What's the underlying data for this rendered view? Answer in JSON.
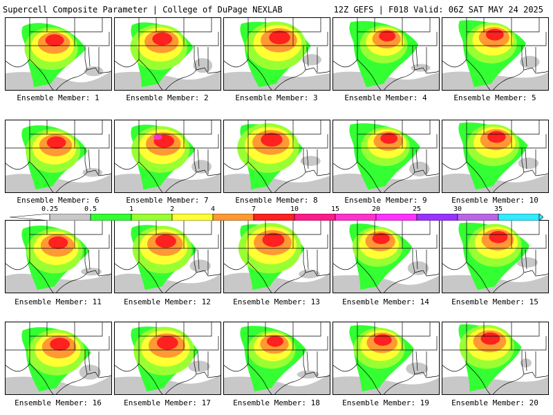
{
  "header": {
    "title": "Supercell Composite Parameter | College of DuPage NEXLAB",
    "run_info": "12Z GEFS | F018 Valid: 06Z SAT MAY 24 2025"
  },
  "colorbar": {
    "ticks": [
      "0.25",
      "0.5",
      "1",
      "2",
      "4",
      "7",
      "10",
      "15",
      "20",
      "25",
      "30",
      "35"
    ],
    "colors": [
      "#c8c8c8",
      "#33ff33",
      "#99ff33",
      "#ffff33",
      "#ff9933",
      "#ff2020",
      "#ff1a8c",
      "#ff33cc",
      "#ff33ff",
      "#9933ff",
      "#b866e6",
      "#33eaff"
    ]
  },
  "panels": [
    {
      "label": "Ensemble Member: 1"
    },
    {
      "label": "Ensemble Member: 2"
    },
    {
      "label": "Ensemble Member: 3"
    },
    {
      "label": "Ensemble Member: 4"
    },
    {
      "label": "Ensemble Member: 5"
    },
    {
      "label": "Ensemble Member: 6"
    },
    {
      "label": "Ensemble Member: 7"
    },
    {
      "label": "Ensemble Member: 8"
    },
    {
      "label": "Ensemble Member: 9"
    },
    {
      "label": "Ensemble Member: 10"
    },
    {
      "label": "Ensemble Member: 11"
    },
    {
      "label": "Ensemble Member: 12"
    },
    {
      "label": "Ensemble Member: 13"
    },
    {
      "label": "Ensemble Member: 14"
    },
    {
      "label": "Ensemble Member: 15"
    },
    {
      "label": "Ensemble Member: 16"
    },
    {
      "label": "Ensemble Member: 17"
    },
    {
      "label": "Ensemble Member: 18"
    },
    {
      "label": "Ensemble Member: 19"
    },
    {
      "label": "Ensemble Member: 20"
    }
  ]
}
